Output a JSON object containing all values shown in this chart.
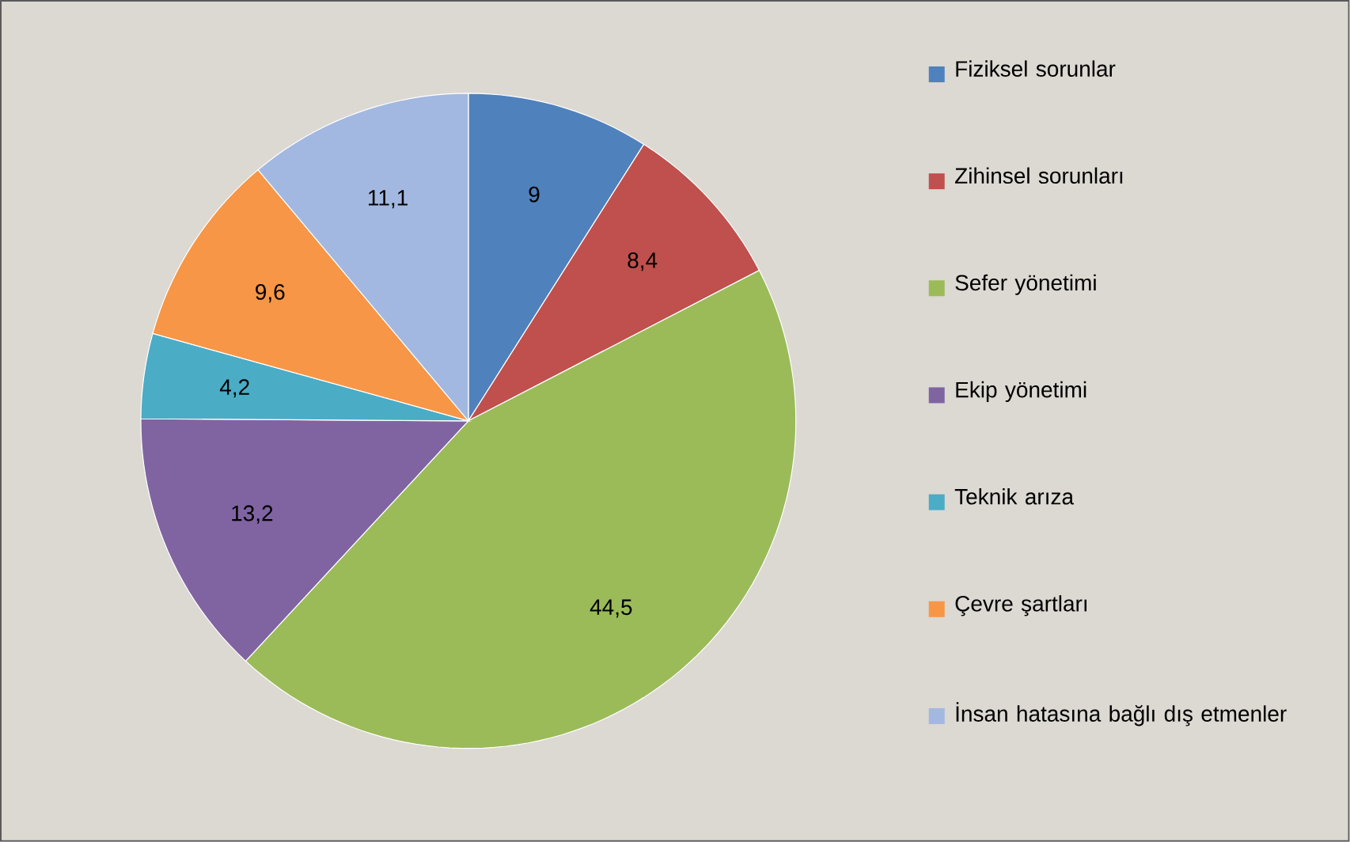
{
  "chart_data": {
    "type": "pie",
    "categories": [
      "Fiziksel sorunlar",
      "Zihinsel sorunları",
      "Sefer yönetimi",
      "Ekip yönetimi",
      "Teknik arıza",
      "Çevre şartları",
      "İnsan hatasına bağlı dış etmenler"
    ],
    "values": [
      9,
      8.4,
      44.5,
      13.2,
      4.2,
      9.6,
      11.1
    ],
    "value_labels": [
      "9",
      "8,4",
      "44,5",
      "13,2",
      "4,2",
      "9,6",
      "11,1"
    ],
    "colors": [
      "#4f81bd",
      "#c0504d",
      "#9bbb59",
      "#8064a2",
      "#4bacc6",
      "#f79646",
      "#a2b8e0"
    ],
    "legend": "right"
  }
}
